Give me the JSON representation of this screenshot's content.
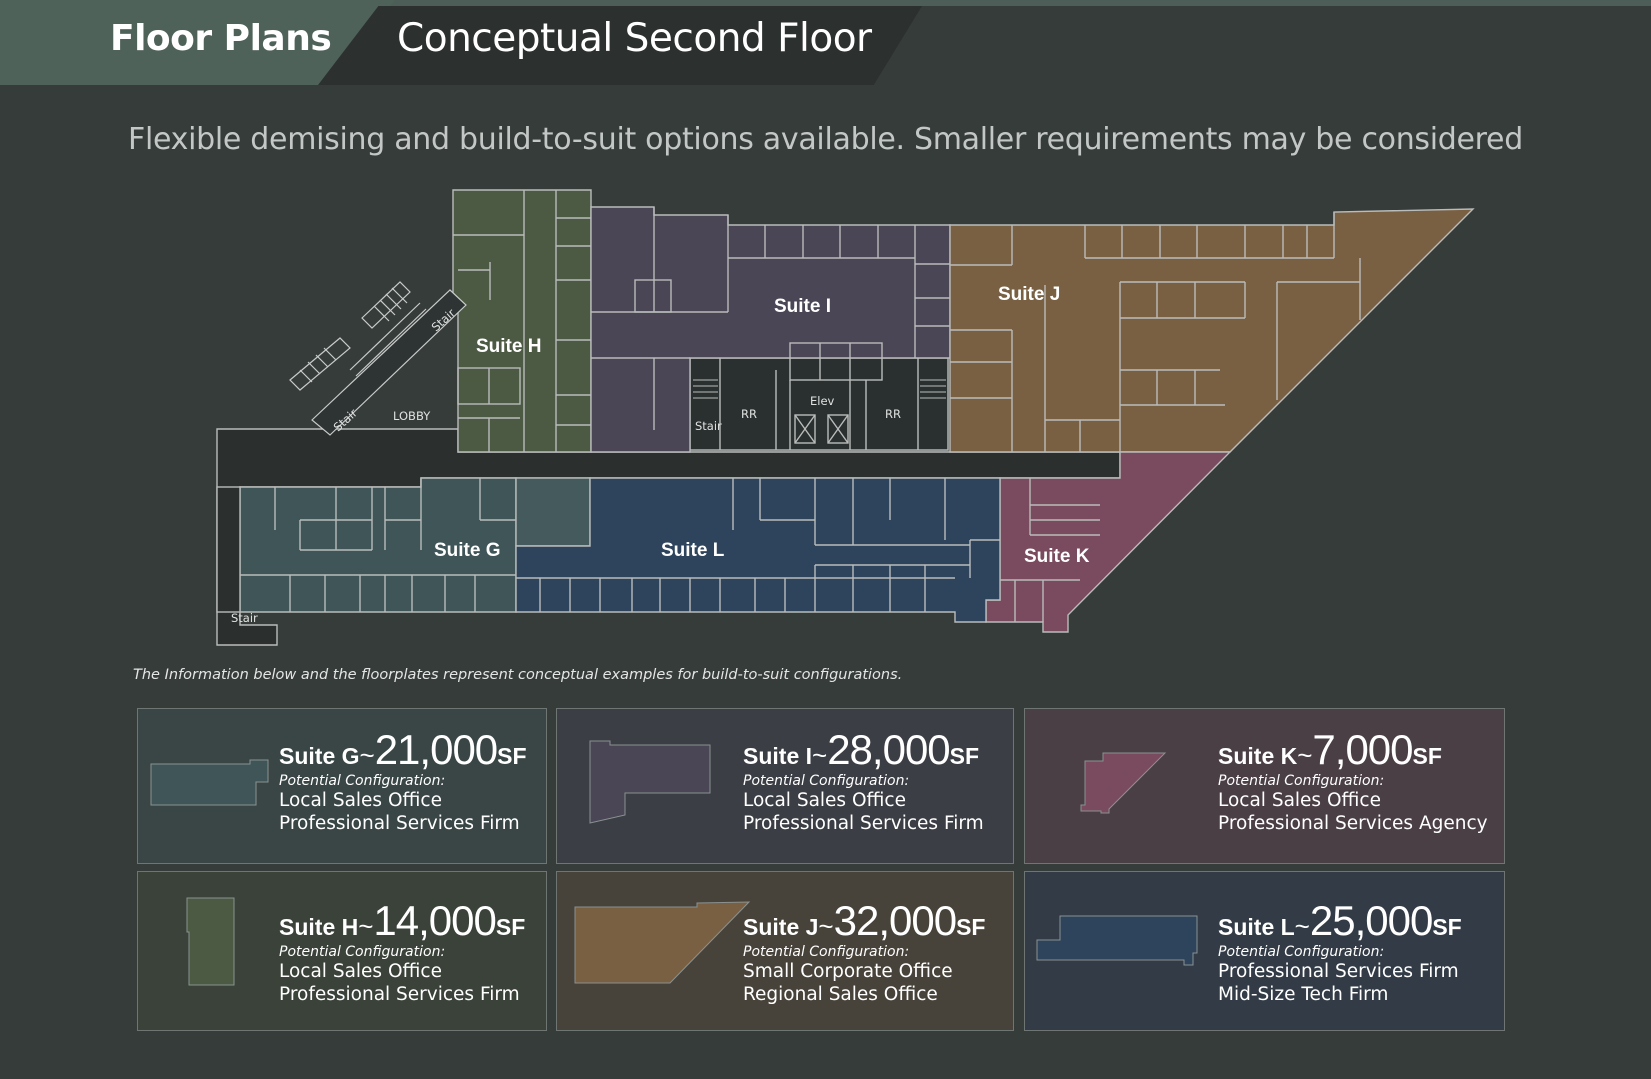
{
  "header": {
    "section": "Floor Plans",
    "title": "Conceptual Second Floor"
  },
  "subtitle": "Flexible demising and build-to-suit options available. Smaller requirements may be considered",
  "plan": {
    "labels": {
      "suite_h": "Suite H",
      "suite_i": "Suite I",
      "suite_j": "Suite J",
      "suite_g": "Suite G",
      "suite_l": "Suite L",
      "suite_k": "Suite K",
      "lobby": "LOBBY",
      "stair_1": "Stair",
      "stair_2": "Stair",
      "stair_3": "Stair",
      "stair_4": "Stair",
      "elev": "Elev",
      "rr_1": "RR",
      "rr_2": "RR"
    },
    "colors": {
      "suite_g": "#3f5557",
      "suite_h": "#4c5a43",
      "suite_i": "#4a4656",
      "suite_j": "#7a6043",
      "suite_k": "#7a4a5e",
      "suite_l": "#2e435c",
      "core": "#2a302f",
      "walls": "#b9bcbb"
    }
  },
  "disclaimer": "The Information below and the floorplates represent conceptual examples for build-to-suit configurations.",
  "cards": [
    {
      "suite": "Suite G",
      "tilde": "~",
      "size": "21,000",
      "unit": "SF",
      "potential": "Potential Configuration:",
      "uses": [
        "Local Sales Office",
        "Professional Services Firm"
      ],
      "color": "#3f5557",
      "bg": "#3a4646"
    },
    {
      "suite": "Suite I",
      "tilde": "~",
      "size": "28,000",
      "unit": "SF",
      "potential": "Potential Configuration:",
      "uses": [
        "Local Sales Office",
        "Professional Services Firm"
      ],
      "color": "#4a4656",
      "bg": "#3b3e44"
    },
    {
      "suite": "Suite K",
      "tilde": "~",
      "size": "7,000",
      "unit": "SF",
      "potential": "Potential Configuration:",
      "uses": [
        "Local Sales Office",
        "Professional Services Agency"
      ],
      "color": "#7a4a5e",
      "bg": "#4a3f45"
    },
    {
      "suite": "Suite H",
      "tilde": "~",
      "size": "14,000",
      "unit": "SF",
      "potential": "Potential Configuration:",
      "uses": [
        "Local Sales Office",
        "Professional Services Firm"
      ],
      "color": "#4c5a43",
      "bg": "#3a4239"
    },
    {
      "suite": "Suite J",
      "tilde": "~",
      "size": "32,000",
      "unit": "SF",
      "potential": "Potential Configuration:",
      "uses": [
        "Small Corporate Office",
        "Regional Sales Office"
      ],
      "color": "#7a6043",
      "bg": "#48433a"
    },
    {
      "suite": "Suite L",
      "tilde": "~",
      "size": "25,000",
      "unit": "SF",
      "potential": "Potential Configuration:",
      "uses": [
        "Professional Services Firm",
        "Mid-Size Tech Firm"
      ],
      "color": "#2e435c",
      "bg": "#333c46"
    }
  ]
}
